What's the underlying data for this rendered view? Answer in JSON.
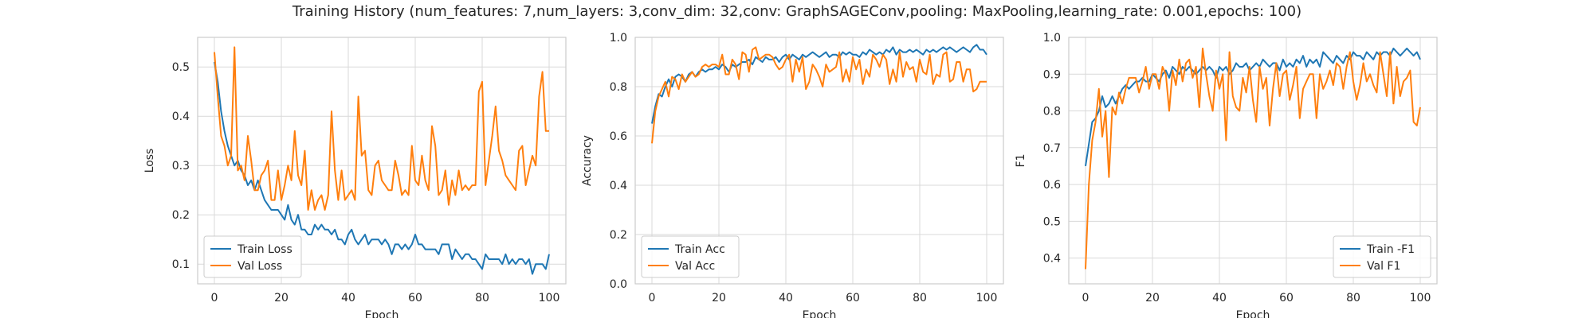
{
  "figure": {
    "title": "Training History (num_features: 7,num_layers: 3,conv_dim: 32,conv: GraphSAGEConv,pooling: MaxPooling,learning_rate: 0.001,epochs: 100)"
  },
  "colors": {
    "train": "#1f77b4",
    "val": "#ff7f0e",
    "grid": "#d9d9d9",
    "text": "#262626"
  },
  "chart_data": [
    {
      "type": "line",
      "xlabel": "Epoch",
      "ylabel": "Loss",
      "xlim": [
        -5,
        105
      ],
      "ylim": [
        0.06,
        0.56
      ],
      "xticks": [
        0,
        20,
        40,
        60,
        80,
        100
      ],
      "yticks": [
        0.1,
        0.2,
        0.3,
        0.4,
        0.5
      ],
      "ytick_labels": [
        "0.1",
        "0.2",
        "0.3",
        "0.4",
        "0.5"
      ],
      "legend_loc": "lower-left",
      "grid": true,
      "series": [
        {
          "name": "Train Loss",
          "color": "#1f77b4",
          "values": [
            0.51,
            0.47,
            0.41,
            0.37,
            0.34,
            0.32,
            0.3,
            0.31,
            0.29,
            0.28,
            0.26,
            0.27,
            0.25,
            0.27,
            0.25,
            0.23,
            0.22,
            0.21,
            0.21,
            0.21,
            0.2,
            0.19,
            0.22,
            0.19,
            0.18,
            0.2,
            0.17,
            0.17,
            0.16,
            0.16,
            0.18,
            0.17,
            0.18,
            0.17,
            0.17,
            0.16,
            0.17,
            0.15,
            0.15,
            0.14,
            0.16,
            0.17,
            0.15,
            0.14,
            0.15,
            0.16,
            0.14,
            0.15,
            0.15,
            0.15,
            0.14,
            0.15,
            0.14,
            0.12,
            0.14,
            0.14,
            0.13,
            0.14,
            0.13,
            0.14,
            0.16,
            0.14,
            0.14,
            0.13,
            0.13,
            0.13,
            0.13,
            0.12,
            0.14,
            0.14,
            0.14,
            0.11,
            0.13,
            0.12,
            0.11,
            0.12,
            0.12,
            0.11,
            0.11,
            0.1,
            0.09,
            0.12,
            0.11,
            0.11,
            0.11,
            0.11,
            0.1,
            0.12,
            0.1,
            0.11,
            0.1,
            0.11,
            0.11,
            0.1,
            0.11,
            0.08,
            0.1,
            0.1,
            0.1,
            0.09,
            0.12
          ]
        },
        {
          "name": "Val Loss",
          "color": "#ff7f0e",
          "values": [
            0.53,
            0.44,
            0.36,
            0.34,
            0.3,
            0.32,
            0.54,
            0.29,
            0.3,
            0.27,
            0.36,
            0.31,
            0.25,
            0.25,
            0.28,
            0.29,
            0.31,
            0.23,
            0.23,
            0.29,
            0.23,
            0.26,
            0.3,
            0.27,
            0.37,
            0.28,
            0.26,
            0.33,
            0.21,
            0.25,
            0.21,
            0.23,
            0.24,
            0.21,
            0.24,
            0.41,
            0.29,
            0.23,
            0.29,
            0.23,
            0.24,
            0.25,
            0.23,
            0.44,
            0.32,
            0.33,
            0.25,
            0.24,
            0.3,
            0.31,
            0.27,
            0.26,
            0.25,
            0.25,
            0.31,
            0.28,
            0.24,
            0.25,
            0.24,
            0.34,
            0.27,
            0.26,
            0.32,
            0.27,
            0.25,
            0.38,
            0.34,
            0.24,
            0.25,
            0.29,
            0.22,
            0.27,
            0.24,
            0.29,
            0.25,
            0.26,
            0.25,
            0.26,
            0.26,
            0.45,
            0.47,
            0.26,
            0.31,
            0.36,
            0.42,
            0.33,
            0.31,
            0.28,
            0.27,
            0.26,
            0.25,
            0.33,
            0.34,
            0.26,
            0.29,
            0.32,
            0.3,
            0.44,
            0.49,
            0.37,
            0.37
          ]
        }
      ]
    },
    {
      "type": "line",
      "xlabel": "Epoch",
      "ylabel": "Accuracy",
      "xlim": [
        -5,
        105
      ],
      "ylim": [
        0.0,
        1.0
      ],
      "xticks": [
        0,
        20,
        40,
        60,
        80,
        100
      ],
      "yticks": [
        0.0,
        0.2,
        0.4,
        0.6,
        0.8,
        1.0
      ],
      "ytick_labels": [
        "0.0",
        "0.2",
        "0.4",
        "0.6",
        "0.8",
        "1.0"
      ],
      "legend_loc": "lower-left",
      "grid": true,
      "series": [
        {
          "name": "Train Acc",
          "color": "#1f77b4",
          "values": [
            0.65,
            0.72,
            0.77,
            0.76,
            0.8,
            0.83,
            0.8,
            0.84,
            0.85,
            0.84,
            0.82,
            0.85,
            0.86,
            0.84,
            0.86,
            0.87,
            0.86,
            0.87,
            0.87,
            0.88,
            0.87,
            0.89,
            0.88,
            0.86,
            0.89,
            0.88,
            0.89,
            0.9,
            0.9,
            0.91,
            0.89,
            0.92,
            0.91,
            0.9,
            0.92,
            0.91,
            0.91,
            0.92,
            0.9,
            0.92,
            0.93,
            0.91,
            0.93,
            0.92,
            0.91,
            0.93,
            0.92,
            0.93,
            0.94,
            0.93,
            0.92,
            0.93,
            0.94,
            0.92,
            0.93,
            0.93,
            0.92,
            0.94,
            0.93,
            0.94,
            0.93,
            0.93,
            0.92,
            0.94,
            0.93,
            0.95,
            0.94,
            0.93,
            0.94,
            0.93,
            0.95,
            0.94,
            0.96,
            0.93,
            0.95,
            0.94,
            0.94,
            0.95,
            0.94,
            0.95,
            0.94,
            0.93,
            0.95,
            0.94,
            0.95,
            0.94,
            0.95,
            0.96,
            0.95,
            0.96,
            0.95,
            0.94,
            0.95,
            0.96,
            0.95,
            0.94,
            0.96,
            0.97,
            0.95,
            0.95,
            0.93
          ]
        },
        {
          "name": "Val Acc",
          "color": "#ff7f0e",
          "values": [
            0.57,
            0.7,
            0.76,
            0.79,
            0.82,
            0.76,
            0.84,
            0.83,
            0.79,
            0.85,
            0.82,
            0.84,
            0.86,
            0.84,
            0.85,
            0.88,
            0.89,
            0.88,
            0.89,
            0.89,
            0.88,
            0.93,
            0.85,
            0.85,
            0.91,
            0.89,
            0.83,
            0.94,
            0.93,
            0.86,
            0.95,
            0.96,
            0.91,
            0.92,
            0.93,
            0.93,
            0.92,
            0.89,
            0.87,
            0.88,
            0.91,
            0.93,
            0.82,
            0.91,
            0.86,
            0.92,
            0.79,
            0.82,
            0.89,
            0.87,
            0.84,
            0.8,
            0.89,
            0.86,
            0.87,
            0.88,
            0.94,
            0.82,
            0.87,
            0.82,
            0.92,
            0.87,
            0.91,
            0.81,
            0.87,
            0.84,
            0.93,
            0.91,
            0.88,
            0.93,
            0.91,
            0.81,
            0.87,
            0.82,
            0.94,
            0.84,
            0.9,
            0.87,
            0.88,
            0.82,
            0.91,
            0.86,
            0.85,
            0.93,
            0.81,
            0.85,
            0.84,
            0.93,
            0.94,
            0.82,
            0.83,
            0.9,
            0.9,
            0.82,
            0.87,
            0.87,
            0.78,
            0.79,
            0.82,
            0.82,
            0.82
          ]
        }
      ]
    },
    {
      "type": "line",
      "xlabel": "Epoch",
      "ylabel": "F1",
      "xlim": [
        -5,
        105
      ],
      "ylim": [
        0.33,
        1.0
      ],
      "xticks": [
        0,
        20,
        40,
        60,
        80,
        100
      ],
      "yticks": [
        0.4,
        0.5,
        0.6,
        0.7,
        0.8,
        0.9,
        1.0
      ],
      "ytick_labels": [
        "0.4",
        "0.5",
        "0.6",
        "0.7",
        "0.8",
        "0.9",
        "1.0"
      ],
      "legend_loc": "lower-right",
      "grid": true,
      "series": [
        {
          "name": "Train -F1",
          "color": "#1f77b4",
          "values": [
            0.65,
            0.71,
            0.77,
            0.78,
            0.8,
            0.84,
            0.81,
            0.82,
            0.84,
            0.82,
            0.84,
            0.86,
            0.87,
            0.86,
            0.87,
            0.88,
            0.88,
            0.89,
            0.88,
            0.88,
            0.9,
            0.89,
            0.88,
            0.9,
            0.91,
            0.89,
            0.92,
            0.91,
            0.9,
            0.92,
            0.91,
            0.92,
            0.91,
            0.9,
            0.91,
            0.92,
            0.91,
            0.92,
            0.91,
            0.89,
            0.92,
            0.91,
            0.92,
            0.9,
            0.91,
            0.93,
            0.92,
            0.92,
            0.93,
            0.91,
            0.92,
            0.93,
            0.92,
            0.94,
            0.93,
            0.92,
            0.93,
            0.93,
            0.91,
            0.94,
            0.92,
            0.93,
            0.92,
            0.94,
            0.93,
            0.95,
            0.92,
            0.94,
            0.93,
            0.94,
            0.92,
            0.96,
            0.95,
            0.94,
            0.93,
            0.95,
            0.94,
            0.93,
            0.95,
            0.94,
            0.96,
            0.95,
            0.95,
            0.94,
            0.96,
            0.95,
            0.94,
            0.96,
            0.95,
            0.96,
            0.96,
            0.95,
            0.97,
            0.96,
            0.95,
            0.96,
            0.97,
            0.96,
            0.95,
            0.96,
            0.94
          ]
        },
        {
          "name": "Val F1",
          "color": "#ff7f0e",
          "values": [
            0.37,
            0.6,
            0.72,
            0.77,
            0.86,
            0.73,
            0.8,
            0.62,
            0.81,
            0.79,
            0.85,
            0.82,
            0.86,
            0.89,
            0.89,
            0.89,
            0.85,
            0.88,
            0.92,
            0.86,
            0.9,
            0.9,
            0.86,
            0.92,
            0.9,
            0.8,
            0.91,
            0.87,
            0.94,
            0.88,
            0.93,
            0.94,
            0.89,
            0.92,
            0.81,
            0.97,
            0.9,
            0.84,
            0.8,
            0.91,
            0.86,
            0.9,
            0.72,
            0.96,
            0.84,
            0.81,
            0.8,
            0.89,
            0.85,
            0.92,
            0.83,
            0.77,
            0.92,
            0.86,
            0.89,
            0.76,
            0.86,
            0.93,
            0.84,
            0.9,
            0.91,
            0.83,
            0.87,
            0.92,
            0.78,
            0.86,
            0.88,
            0.9,
            0.9,
            0.78,
            0.9,
            0.86,
            0.88,
            0.91,
            0.87,
            0.93,
            0.92,
            0.86,
            0.92,
            0.96,
            0.88,
            0.83,
            0.87,
            0.93,
            0.88,
            0.9,
            0.87,
            0.85,
            0.96,
            0.9,
            0.84,
            0.96,
            0.82,
            0.92,
            0.84,
            0.88,
            0.89,
            0.91,
            0.77,
            0.76,
            0.81
          ]
        }
      ]
    }
  ]
}
